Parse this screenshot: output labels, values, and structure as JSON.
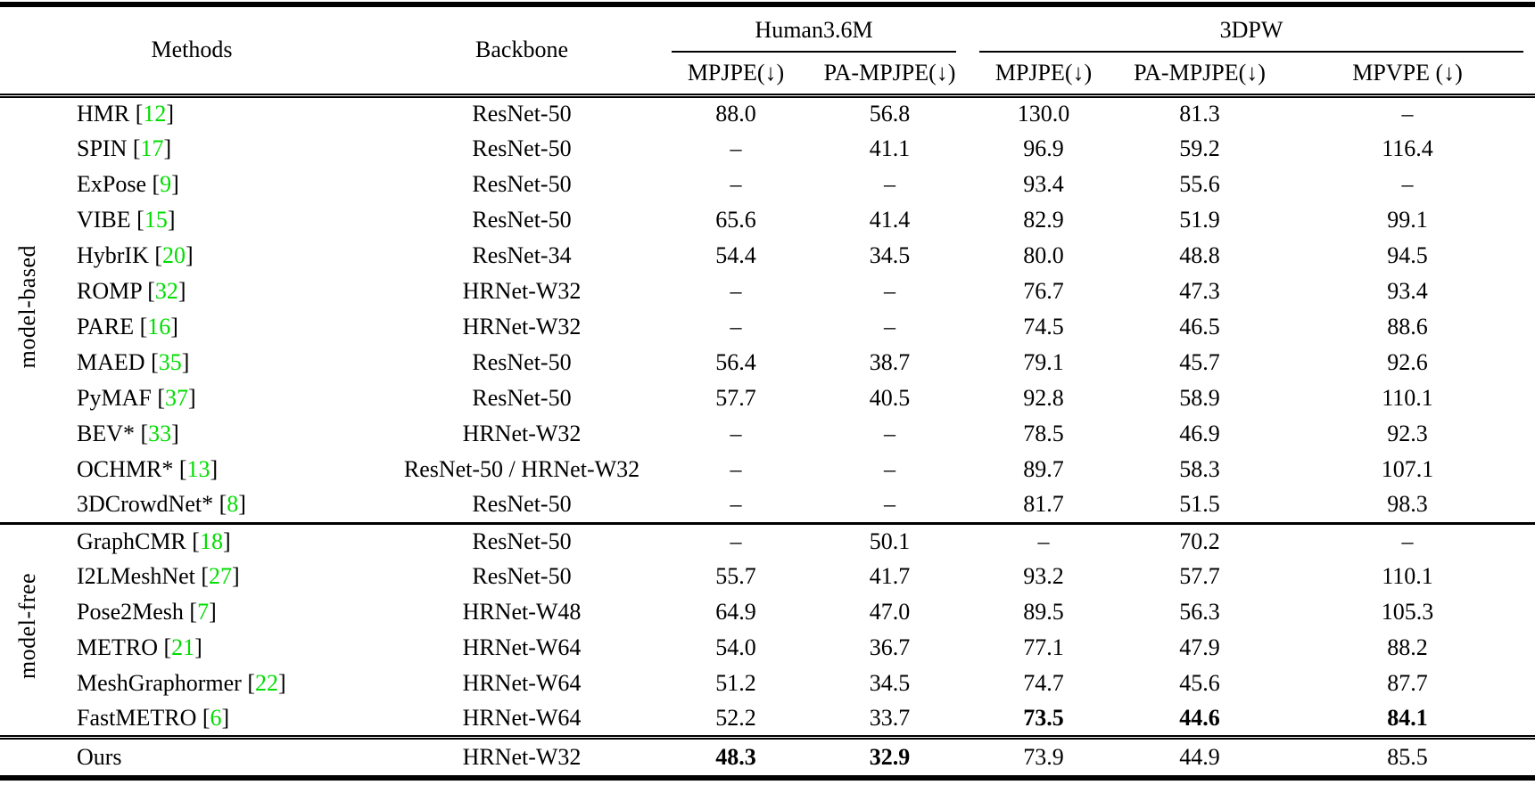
{
  "table": {
    "citation": {
      "open": "[",
      "close": "]"
    },
    "colors": {
      "citation": "#00dd00",
      "text": "#000000"
    },
    "header": {
      "methods": "Methods",
      "backbone": "Backbone",
      "groups": [
        {
          "label": "Human3.6M",
          "sub": [
            "MPJPE(↓)",
            "PA-MPJPE(↓)"
          ]
        },
        {
          "label": "3DPW",
          "sub": [
            "MPJPE(↓)",
            "PA-MPJPE(↓)",
            "MPVPE (↓)"
          ]
        }
      ]
    },
    "sections": [
      {
        "label": "model-based",
        "rows": [
          {
            "method": "HMR",
            "cite": "12",
            "backbone": "ResNet-50",
            "values": [
              "88.0",
              "56.8",
              "130.0",
              "81.3",
              "–"
            ]
          },
          {
            "method": "SPIN",
            "cite": "17",
            "backbone": "ResNet-50",
            "values": [
              "–",
              "41.1",
              "96.9",
              "59.2",
              "116.4"
            ]
          },
          {
            "method": "ExPose",
            "cite": "9",
            "backbone": "ResNet-50",
            "values": [
              "–",
              "–",
              "93.4",
              "55.6",
              "–"
            ]
          },
          {
            "method": "VIBE",
            "cite": "15",
            "backbone": "ResNet-50",
            "values": [
              "65.6",
              "41.4",
              "82.9",
              "51.9",
              "99.1"
            ]
          },
          {
            "method": "HybrIK",
            "cite": "20",
            "backbone": "ResNet-34",
            "values": [
              "54.4",
              "34.5",
              "80.0",
              "48.8",
              "94.5"
            ]
          },
          {
            "method": "ROMP",
            "cite": "32",
            "backbone": "HRNet-W32",
            "values": [
              "–",
              "–",
              "76.7",
              "47.3",
              "93.4"
            ]
          },
          {
            "method": "PARE",
            "cite": "16",
            "backbone": "HRNet-W32",
            "values": [
              "–",
              "–",
              "74.5",
              "46.5",
              "88.6"
            ]
          },
          {
            "method": "MAED",
            "cite": "35",
            "backbone": "ResNet-50",
            "values": [
              "56.4",
              "38.7",
              "79.1",
              "45.7",
              "92.6"
            ]
          },
          {
            "method": "PyMAF",
            "cite": "37",
            "backbone": "ResNet-50",
            "values": [
              "57.7",
              "40.5",
              "92.8",
              "58.9",
              "110.1"
            ]
          },
          {
            "method": "BEV*",
            "cite": "33",
            "backbone": "HRNet-W32",
            "values": [
              "–",
              "–",
              "78.5",
              "46.9",
              "92.3"
            ]
          },
          {
            "method": "OCHMR*",
            "cite": "13",
            "backbone": "ResNet-50 / HRNet-W32",
            "values": [
              "–",
              "–",
              "89.7",
              "58.3",
              "107.1"
            ]
          },
          {
            "method": "3DCrowdNet*",
            "cite": "8",
            "backbone": "ResNet-50",
            "values": [
              "–",
              "–",
              "81.7",
              "51.5",
              "98.3"
            ]
          }
        ]
      },
      {
        "label": "model-free",
        "rows": [
          {
            "method": "GraphCMR",
            "cite": "18",
            "backbone": "ResNet-50",
            "values": [
              "–",
              "50.1",
              "–",
              "70.2",
              "–"
            ]
          },
          {
            "method": "I2LMeshNet",
            "cite": "27",
            "backbone": "ResNet-50",
            "values": [
              "55.7",
              "41.7",
              "93.2",
              "57.7",
              "110.1"
            ]
          },
          {
            "method": "Pose2Mesh",
            "cite": "7",
            "backbone": "HRNet-W48",
            "values": [
              "64.9",
              "47.0",
              "89.5",
              "56.3",
              "105.3"
            ]
          },
          {
            "method": "METRO",
            "cite": "21",
            "backbone": "HRNet-W64",
            "values": [
              "54.0",
              "36.7",
              "77.1",
              "47.9",
              "88.2"
            ]
          },
          {
            "method": "MeshGraphormer",
            "cite": "22",
            "backbone": "HRNet-W64",
            "values": [
              "51.2",
              "34.5",
              "74.7",
              "45.6",
              "87.7"
            ]
          },
          {
            "method": "FastMETRO",
            "cite": "6",
            "backbone": "HRNet-W64",
            "values": [
              "52.2",
              "33.7",
              "73.5",
              "44.6",
              "84.1"
            ],
            "bold": [
              false,
              false,
              true,
              true,
              true
            ]
          }
        ]
      },
      {
        "label": "",
        "rows": [
          {
            "method": "Ours",
            "cite": null,
            "backbone": "HRNet-W32",
            "values": [
              "48.3",
              "32.9",
              "73.9",
              "44.9",
              "85.5"
            ],
            "bold": [
              true,
              true,
              false,
              false,
              false
            ]
          }
        ]
      }
    ]
  }
}
